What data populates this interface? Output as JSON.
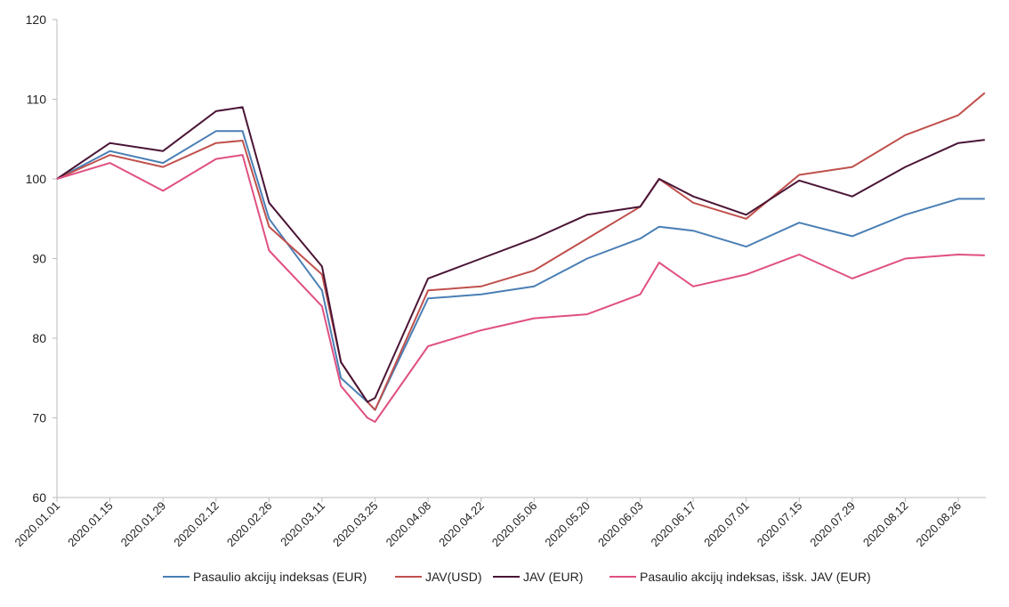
{
  "chart_data": {
    "type": "line",
    "title": "",
    "xlabel": "",
    "ylabel": "",
    "ylim": [
      60,
      120
    ],
    "y_ticks": [
      "60",
      "70",
      "80",
      "90",
      "100",
      "110",
      "120"
    ],
    "x_ticks": [
      "2020.01.01",
      "2020.01.15",
      "2020.01.29",
      "2020.02.12",
      "2020.02.26",
      "2020.03.11",
      "2020.03.25",
      "2020.04.08",
      "2020.04.22",
      "2020.05.06",
      "2020.05.20",
      "2020.06.03",
      "2020.06.17",
      "2020.07.01",
      "2020.07.15",
      "2020.07.29",
      "2020.08.12",
      "2020.08.26"
    ],
    "x": [
      "2020.01.01",
      "2020.01.15",
      "2020.01.29",
      "2020.02.12",
      "2020.02.19",
      "2020.02.26",
      "2020.03.11",
      "2020.03.16",
      "2020.03.23",
      "2020.03.25",
      "2020.04.08",
      "2020.04.22",
      "2020.05.06",
      "2020.05.20",
      "2020.06.03",
      "2020.06.08",
      "2020.06.17",
      "2020.07.01",
      "2020.07.15",
      "2020.07.29",
      "2020.08.12",
      "2020.08.26",
      "2020.09.02"
    ],
    "series": [
      {
        "name": "Pasaulio akcijų indeksas (EUR)",
        "color": "#4a7fb5",
        "values": [
          100,
          103.5,
          102,
          106,
          106,
          95,
          86,
          75,
          72,
          71,
          85,
          85.5,
          86.5,
          90,
          92.5,
          94,
          93.5,
          91.5,
          94.5,
          92.8,
          95.5,
          97.5,
          97.5
        ]
      },
      {
        "name": "JAV(USD)",
        "color": "#c0504d",
        "values": [
          100,
          103,
          101.5,
          104.5,
          104.8,
          94,
          88,
          77,
          72,
          71,
          86,
          86.5,
          88.5,
          92.5,
          96.5,
          100,
          97,
          95,
          100.5,
          101.5,
          105.5,
          108,
          110.8
        ]
      },
      {
        "name": "JAV (EUR)",
        "color": "#4a1535",
        "values": [
          100,
          104.5,
          103.5,
          108.5,
          109,
          97,
          89,
          77,
          72,
          72.5,
          87.5,
          90,
          92.5,
          95.5,
          96.5,
          100,
          97.8,
          95.5,
          99.8,
          97.8,
          101.5,
          104.5,
          104.9
        ]
      },
      {
        "name": "Pasaulio akcijų indeksas, išsk. JAV (EUR)",
        "color": "#e05082",
        "values": [
          100,
          102,
          98.5,
          102.5,
          103,
          91,
          84,
          74,
          70,
          69.5,
          79,
          81,
          82.5,
          83,
          85.5,
          89.5,
          86.5,
          88,
          90.5,
          87.5,
          90,
          90.5,
          90.4
        ]
      }
    ],
    "grid": false,
    "legend_position": "bottom"
  },
  "legend": {
    "items": [
      {
        "label": "Pasaulio akcijų indeksas (EUR)",
        "color": "#4a7fb5"
      },
      {
        "label": "JAV(USD)",
        "color": "#c0504d"
      },
      {
        "label": "JAV (EUR)",
        "color": "#4a1535"
      },
      {
        "label": "Pasaulio akcijų indeksas, išsk. JAV (EUR)",
        "color": "#e05082"
      }
    ]
  }
}
